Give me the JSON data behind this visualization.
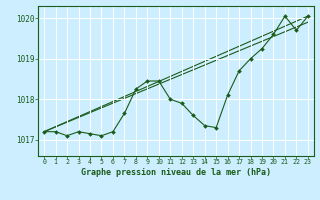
{
  "background_color": "#cceeff",
  "grid_color": "#ffffff",
  "line_color": "#1a5c1a",
  "marker_color": "#1a5c1a",
  "title": "Graphe pression niveau de la mer (hPa)",
  "xlim": [
    -0.5,
    23.5
  ],
  "ylim": [
    1016.6,
    1020.3
  ],
  "yticks": [
    1017,
    1018,
    1019,
    1020
  ],
  "xticks": [
    0,
    1,
    2,
    3,
    4,
    5,
    6,
    7,
    8,
    9,
    10,
    11,
    12,
    13,
    14,
    15,
    16,
    17,
    18,
    19,
    20,
    21,
    22,
    23
  ],
  "main_series": [
    1017.2,
    1017.2,
    1017.1,
    1017.2,
    1017.15,
    1017.1,
    1017.2,
    1017.65,
    1018.25,
    1018.45,
    1018.45,
    1018.0,
    1017.9,
    1017.6,
    1017.35,
    1017.3,
    1018.1,
    1018.7,
    1019.0,
    1019.25,
    1019.6,
    1020.05,
    1019.7,
    1020.05
  ],
  "line1": [
    1017.2,
    1020.05
  ],
  "line2": [
    1017.2,
    1019.9
  ],
  "line1_x": [
    0,
    23
  ],
  "line2_x": [
    0,
    23
  ]
}
